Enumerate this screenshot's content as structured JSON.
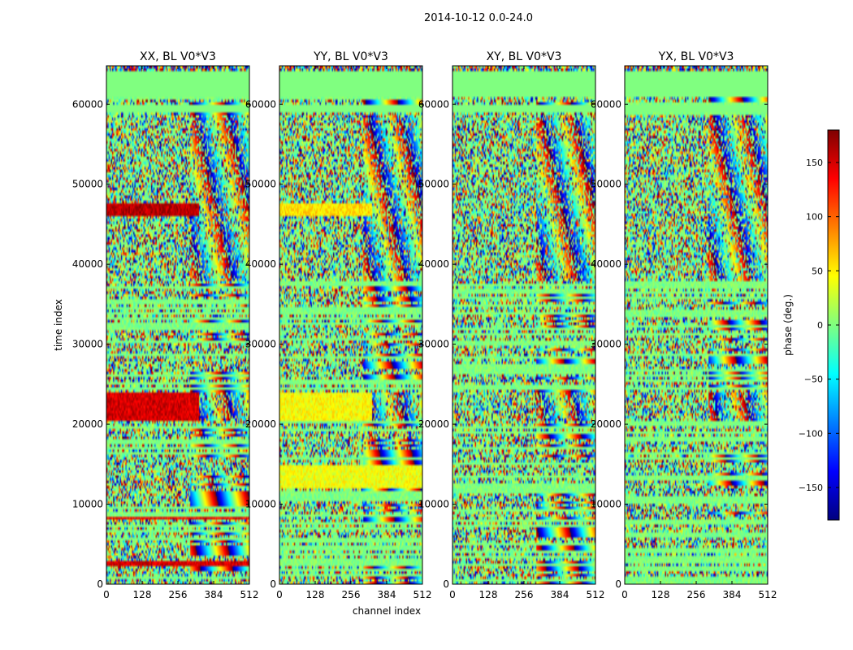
{
  "figure": {
    "suptitle": "2014-10-12 0.0-24.0"
  },
  "chart_data": {
    "type": "heatmap",
    "title": "2014-10-12 0.0-24.0",
    "xlabel": "channel index",
    "ylabel": "time index",
    "xlim": [
      0,
      512
    ],
    "ylim": [
      0,
      64800
    ],
    "x_ticks": [
      0,
      128,
      256,
      384,
      512
    ],
    "y_ticks": [
      0,
      10000,
      20000,
      30000,
      40000,
      50000,
      60000
    ],
    "panels": [
      {
        "title": "XX, BL V0*V3",
        "pol": "XX"
      },
      {
        "title": "YY, BL V0*V3",
        "pol": "YY"
      },
      {
        "title": "XY, BL V0*V3",
        "pol": "XY"
      },
      {
        "title": "YX, BL V0*V3",
        "pol": "YX"
      }
    ],
    "colorbar": {
      "label": "phase (deg.)",
      "range": [
        -180,
        180
      ],
      "ticks": [
        150,
        100,
        50,
        0,
        -50,
        -100,
        -150
      ],
      "tick_labels": [
        "150",
        "100",
        "50",
        "0",
        "−50",
        "−100",
        "−150"
      ],
      "colormap": "jet"
    },
    "flagged_blocks": [
      {
        "t_start": 61000,
        "t_end": 64300,
        "phase": 0
      },
      {
        "t_start": 59000,
        "t_end": 59900,
        "phase": 0
      }
    ],
    "high_phase_blocks": [
      {
        "panel": "XX",
        "t_start": 46000,
        "t_end": 47500,
        "ch_end": 330,
        "phase": 160
      },
      {
        "panel": "XX",
        "t_start": 20500,
        "t_end": 24000,
        "ch_end": 330,
        "phase": 150
      },
      {
        "panel": "XX",
        "t_start": 8000,
        "t_end": 8500,
        "ch_end": 512,
        "phase": 140
      },
      {
        "panel": "XX",
        "t_start": 2200,
        "t_end": 3000,
        "ch_end": 512,
        "phase": 150
      },
      {
        "panel": "YY",
        "t_start": 46000,
        "t_end": 47500,
        "ch_end": 330,
        "phase": 55
      },
      {
        "panel": "YY",
        "t_start": 20500,
        "t_end": 24000,
        "ch_end": 330,
        "phase": 45
      },
      {
        "panel": "YY",
        "t_start": 12000,
        "t_end": 15000,
        "ch_end": 512,
        "phase": 40
      }
    ]
  }
}
